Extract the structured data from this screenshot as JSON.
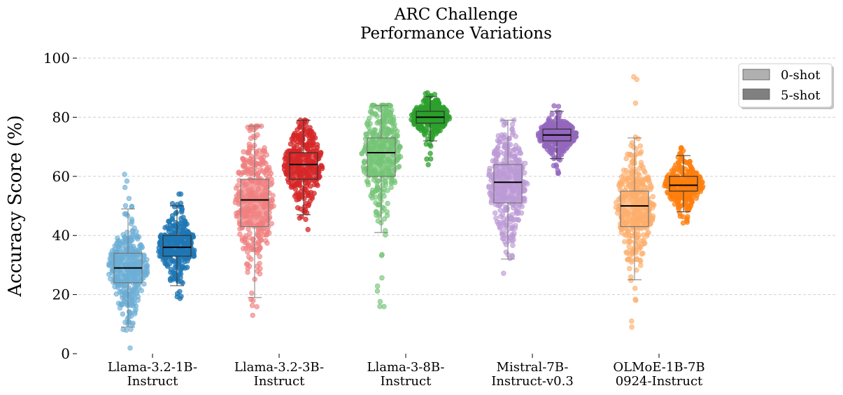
{
  "chart_data": {
    "type": "box-strip",
    "title_line1": "ARC Challenge",
    "title_line2": "Performance Variations",
    "ylabel": "Accuracy Score (%)",
    "ylim": [
      0,
      100
    ],
    "yticks": [
      0,
      20,
      40,
      60,
      80,
      100
    ],
    "grid": "horizontal dashed",
    "legend": {
      "placement": "top-right",
      "entries": [
        {
          "label": "0-shot",
          "color": "#b0b0b0"
        },
        {
          "label": "5-shot",
          "color": "#808080"
        }
      ]
    },
    "categories": [
      {
        "line1": "Llama-3.2-1B-",
        "line2": "Instruct"
      },
      {
        "line1": "Llama-3.2-3B-",
        "line2": "Instruct"
      },
      {
        "line1": "Llama-3-8B-",
        "line2": "Instruct"
      },
      {
        "line1": "Mistral-7B-",
        "line2": "Instruct-v0.3"
      },
      {
        "line1": "OLMoE-1B-7B",
        "line2": "0924-Instruct"
      }
    ],
    "series": [
      {
        "name": "0-shot",
        "colors": [
          "#6baed6",
          "#f08080",
          "#74c476",
          "#bc9ad6",
          "#fdae6b"
        ],
        "boxes": [
          {
            "min": 9,
            "q1": 24,
            "median": 29,
            "q3": 34,
            "max": 49,
            "pmin": 1,
            "pmax": 64
          },
          {
            "min": 19,
            "q1": 43,
            "median": 52,
            "q3": 59,
            "max": 77,
            "pmin": 11,
            "pmax": 77
          },
          {
            "min": 41,
            "q1": 60,
            "median": 68,
            "q3": 73,
            "max": 84,
            "pmin": 12,
            "pmax": 84
          },
          {
            "min": 32,
            "q1": 51,
            "median": 58,
            "q3": 64,
            "max": 79,
            "pmin": 26,
            "pmax": 79
          },
          {
            "min": 25,
            "q1": 43,
            "median": 50,
            "q3": 55,
            "max": 73,
            "pmin": 8,
            "pmax": 96
          }
        ]
      },
      {
        "name": "5-shot",
        "colors": [
          "#1f77b4",
          "#d62728",
          "#2ca02c",
          "#9467bd",
          "#ff7f0e"
        ],
        "boxes": [
          {
            "min": 23,
            "q1": 33,
            "median": 36,
            "q3": 40,
            "max": 50,
            "pmin": 18,
            "pmax": 54
          },
          {
            "min": 47,
            "q1": 59,
            "median": 64,
            "q3": 68,
            "max": 79,
            "pmin": 41,
            "pmax": 79
          },
          {
            "min": 72,
            "q1": 78,
            "median": 80,
            "q3": 82,
            "max": 87,
            "pmin": 62,
            "pmax": 89
          },
          {
            "min": 66,
            "q1": 72,
            "median": 74,
            "q3": 76,
            "max": 82,
            "pmin": 61,
            "pmax": 84
          },
          {
            "min": 48,
            "q1": 55,
            "median": 57,
            "q3": 60,
            "max": 67,
            "pmin": 43,
            "pmax": 71
          }
        ]
      }
    ]
  }
}
